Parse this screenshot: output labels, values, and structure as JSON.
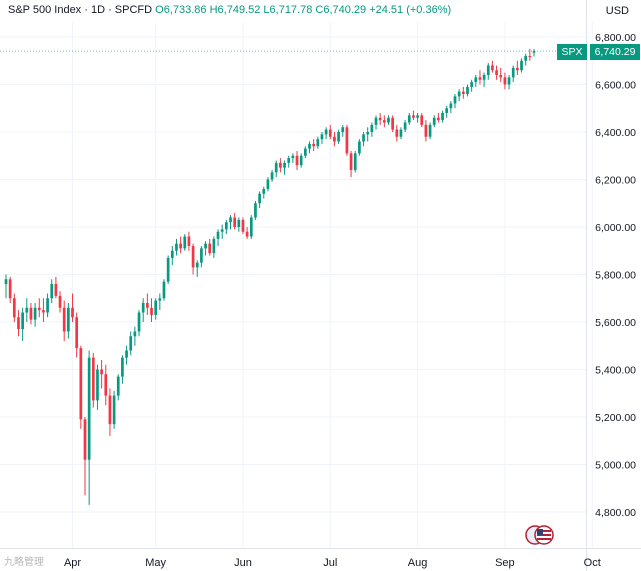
{
  "header": {
    "symbol": "S&P 500 Index · 1D · SPCFD",
    "ohlc": "O6,733.86  H6,749.52  L6,717.78  C6,740.29  +24.51 (+0.36%)"
  },
  "currency": "USD",
  "price_tag": {
    "symbol": "SPX",
    "value": "6,740.29"
  },
  "watermark": "九略管理",
  "colors": {
    "up": "#089981",
    "down": "#f23645",
    "grid": "#f0f3fa",
    "axis": "#e0e3eb"
  },
  "chart_data": {
    "type": "candlestick",
    "title": "S&P 500 Index",
    "interval": "1D",
    "ylim": [
      4700,
      6850
    ],
    "yticks": [
      "6,800.00",
      "6,600.00",
      "6,400.00",
      "6,200.00",
      "6,000.00",
      "5,800.00",
      "5,600.00",
      "5,400.00",
      "5,200.00",
      "5,000.00",
      "4,800.00"
    ],
    "ytick_values": [
      6800,
      6600,
      6400,
      6200,
      6000,
      5800,
      5600,
      5400,
      5200,
      5000,
      4800
    ],
    "xticks": [
      {
        "label": "Apr",
        "index": 16
      },
      {
        "label": "May",
        "index": 36
      },
      {
        "label": "Jun",
        "index": 57
      },
      {
        "label": "Jul",
        "index": 78
      },
      {
        "label": "Aug",
        "index": 99
      },
      {
        "label": "Sep",
        "index": 120
      },
      {
        "label": "Oct",
        "index": 141
      }
    ],
    "last_close": 6740.29,
    "candles": [
      [
        5760,
        5800,
        5700,
        5780
      ],
      [
        5780,
        5790,
        5680,
        5700
      ],
      [
        5700,
        5720,
        5600,
        5620
      ],
      [
        5620,
        5650,
        5540,
        5570
      ],
      [
        5570,
        5660,
        5520,
        5640
      ],
      [
        5640,
        5700,
        5600,
        5660
      ],
      [
        5660,
        5680,
        5590,
        5610
      ],
      [
        5610,
        5680,
        5580,
        5660
      ],
      [
        5660,
        5700,
        5620,
        5650
      ],
      [
        5650,
        5700,
        5600,
        5640
      ],
      [
        5640,
        5720,
        5620,
        5700
      ],
      [
        5700,
        5780,
        5680,
        5760
      ],
      [
        5760,
        5790,
        5700,
        5710
      ],
      [
        5710,
        5730,
        5640,
        5660
      ],
      [
        5660,
        5690,
        5520,
        5560
      ],
      [
        5560,
        5680,
        5530,
        5660
      ],
      [
        5660,
        5720,
        5600,
        5620
      ],
      [
        5620,
        5640,
        5450,
        5490
      ],
      [
        5490,
        5500,
        5150,
        5190
      ],
      [
        5190,
        5200,
        4870,
        5020
      ],
      [
        5020,
        5480,
        4830,
        5450
      ],
      [
        5450,
        5470,
        5240,
        5270
      ],
      [
        5270,
        5420,
        5230,
        5400
      ],
      [
        5400,
        5440,
        5320,
        5380
      ],
      [
        5380,
        5420,
        5250,
        5290
      ],
      [
        5290,
        5320,
        5120,
        5170
      ],
      [
        5170,
        5310,
        5150,
        5290
      ],
      [
        5290,
        5380,
        5270,
        5370
      ],
      [
        5370,
        5460,
        5340,
        5450
      ],
      [
        5450,
        5500,
        5420,
        5480
      ],
      [
        5480,
        5560,
        5460,
        5540
      ],
      [
        5540,
        5580,
        5500,
        5560
      ],
      [
        5560,
        5650,
        5540,
        5640
      ],
      [
        5640,
        5700,
        5600,
        5680
      ],
      [
        5680,
        5720,
        5630,
        5660
      ],
      [
        5660,
        5700,
        5600,
        5630
      ],
      [
        5630,
        5700,
        5610,
        5690
      ],
      [
        5690,
        5720,
        5650,
        5700
      ],
      [
        5700,
        5780,
        5690,
        5770
      ],
      [
        5770,
        5880,
        5760,
        5870
      ],
      [
        5870,
        5920,
        5840,
        5900
      ],
      [
        5900,
        5950,
        5880,
        5930
      ],
      [
        5930,
        5960,
        5890,
        5910
      ],
      [
        5910,
        5970,
        5900,
        5960
      ],
      [
        5960,
        5980,
        5900,
        5920
      ],
      [
        5920,
        5930,
        5800,
        5830
      ],
      [
        5830,
        5860,
        5790,
        5850
      ],
      [
        5850,
        5920,
        5830,
        5910
      ],
      [
        5910,
        5940,
        5880,
        5930
      ],
      [
        5930,
        5950,
        5880,
        5890
      ],
      [
        5890,
        5960,
        5870,
        5950
      ],
      [
        5950,
        5990,
        5920,
        5980
      ],
      [
        5980,
        6010,
        5950,
        5990
      ],
      [
        5990,
        6030,
        5970,
        6020
      ],
      [
        6020,
        6050,
        5990,
        6040
      ],
      [
        6040,
        6060,
        5990,
        6000
      ],
      [
        6000,
        6040,
        5980,
        6030
      ],
      [
        6030,
        6040,
        5970,
        5980
      ],
      [
        5980,
        6000,
        5950,
        5960
      ],
      [
        5960,
        6050,
        5950,
        6040
      ],
      [
        6040,
        6110,
        6030,
        6100
      ],
      [
        6100,
        6150,
        6080,
        6140
      ],
      [
        6140,
        6170,
        6120,
        6160
      ],
      [
        6160,
        6210,
        6150,
        6200
      ],
      [
        6200,
        6240,
        6190,
        6230
      ],
      [
        6230,
        6280,
        6210,
        6270
      ],
      [
        6270,
        6290,
        6230,
        6250
      ],
      [
        6250,
        6280,
        6220,
        6270
      ],
      [
        6270,
        6300,
        6250,
        6290
      ],
      [
        6290,
        6310,
        6270,
        6300
      ],
      [
        6300,
        6320,
        6240,
        6260
      ],
      [
        6260,
        6310,
        6250,
        6300
      ],
      [
        6300,
        6340,
        6290,
        6330
      ],
      [
        6330,
        6360,
        6310,
        6350
      ],
      [
        6350,
        6370,
        6320,
        6340
      ],
      [
        6340,
        6380,
        6330,
        6370
      ],
      [
        6370,
        6400,
        6350,
        6390
      ],
      [
        6390,
        6420,
        6370,
        6410
      ],
      [
        6410,
        6430,
        6370,
        6380
      ],
      [
        6380,
        6400,
        6340,
        6360
      ],
      [
        6360,
        6410,
        6350,
        6400
      ],
      [
        6400,
        6430,
        6380,
        6420
      ],
      [
        6420,
        6430,
        6300,
        6310
      ],
      [
        6310,
        6320,
        6210,
        6240
      ],
      [
        6240,
        6320,
        6230,
        6310
      ],
      [
        6310,
        6370,
        6300,
        6360
      ],
      [
        6360,
        6400,
        6340,
        6390
      ],
      [
        6390,
        6420,
        6360,
        6400
      ],
      [
        6400,
        6440,
        6380,
        6430
      ],
      [
        6430,
        6470,
        6410,
        6460
      ],
      [
        6460,
        6480,
        6430,
        6450
      ],
      [
        6450,
        6470,
        6420,
        6440
      ],
      [
        6440,
        6470,
        6430,
        6460
      ],
      [
        6460,
        6470,
        6400,
        6410
      ],
      [
        6410,
        6430,
        6360,
        6380
      ],
      [
        6380,
        6420,
        6370,
        6410
      ],
      [
        6410,
        6450,
        6400,
        6440
      ],
      [
        6440,
        6480,
        6430,
        6470
      ],
      [
        6470,
        6490,
        6450,
        6460
      ],
      [
        6460,
        6480,
        6440,
        6470
      ],
      [
        6470,
        6480,
        6420,
        6430
      ],
      [
        6430,
        6450,
        6360,
        6380
      ],
      [
        6380,
        6440,
        6370,
        6430
      ],
      [
        6430,
        6470,
        6420,
        6460
      ],
      [
        6460,
        6480,
        6440,
        6450
      ],
      [
        6450,
        6490,
        6440,
        6480
      ],
      [
        6480,
        6510,
        6460,
        6500
      ],
      [
        6500,
        6530,
        6480,
        6520
      ],
      [
        6520,
        6560,
        6500,
        6550
      ],
      [
        6550,
        6580,
        6530,
        6570
      ],
      [
        6570,
        6590,
        6540,
        6560
      ],
      [
        6560,
        6600,
        6550,
        6590
      ],
      [
        6590,
        6620,
        6570,
        6610
      ],
      [
        6610,
        6640,
        6590,
        6630
      ],
      [
        6630,
        6660,
        6600,
        6620
      ],
      [
        6620,
        6650,
        6590,
        6640
      ],
      [
        6640,
        6690,
        6620,
        6680
      ],
      [
        6680,
        6700,
        6650,
        6660
      ],
      [
        6660,
        6680,
        6620,
        6640
      ],
      [
        6640,
        6670,
        6610,
        6630
      ],
      [
        6630,
        6650,
        6580,
        6600
      ],
      [
        6600,
        6640,
        6580,
        6630
      ],
      [
        6630,
        6680,
        6610,
        6670
      ],
      [
        6670,
        6700,
        6640,
        6660
      ],
      [
        6660,
        6710,
        6650,
        6700
      ],
      [
        6700,
        6730,
        6680,
        6720
      ],
      [
        6720,
        6750,
        6700,
        6716
      ],
      [
        6733.86,
        6749.52,
        6717.78,
        6740.29
      ]
    ]
  }
}
